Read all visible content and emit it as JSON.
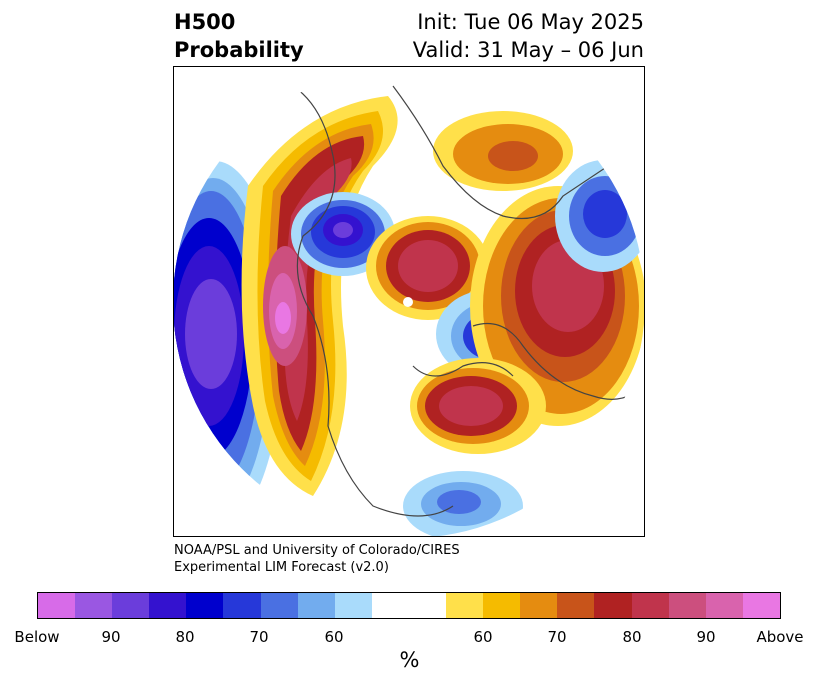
{
  "header": {
    "field": "H500",
    "product": "Probability",
    "init": "Init: Tue 06 May 2025",
    "valid": "Valid: 31 May – 06 Jun"
  },
  "credit": {
    "line1": "NOAA/PSL and University of Colorado/CIRES",
    "line2": "Experimental LIM Forecast (v2.0)"
  },
  "colorbar": {
    "unit": "%",
    "colors": [
      "#d76be8",
      "#9a57e2",
      "#6b3ddb",
      "#3412cf",
      "#0000cd",
      "#2638d9",
      "#4a70e2",
      "#72acee",
      "#a9dbfb",
      "#ffffff",
      "#ffffff",
      "#ffe04a",
      "#f5bb00",
      "#e58c10",
      "#c8541a",
      "#b02222",
      "#c0344c",
      "#cc4f7e",
      "#d963ad",
      "#e977e3"
    ],
    "tick_labels": [
      "Below",
      "90",
      "80",
      "70",
      "60",
      "60",
      "70",
      "80",
      "90",
      "Above"
    ]
  },
  "map": {
    "projection": "north polar stereographic",
    "anomalies": [
      {
        "region": "northeast Pacific / western North America",
        "sign": "above",
        "peak_pct": 95
      },
      {
        "region": "Hudson Bay",
        "sign": "below",
        "peak_pct": 85
      },
      {
        "region": "Arctic Ocean near North Pole",
        "sign": "above",
        "peak_pct": 80
      },
      {
        "region": "eastern Siberia / Kamchatka",
        "sign": "below",
        "peak_pct": 85
      },
      {
        "region": "Scandinavia / western Russia",
        "sign": "above",
        "peak_pct": 85
      },
      {
        "region": "central Europe",
        "sign": "above",
        "peak_pct": 80
      },
      {
        "region": "central Pacific",
        "sign": "below",
        "peak_pct": 90
      }
    ]
  }
}
